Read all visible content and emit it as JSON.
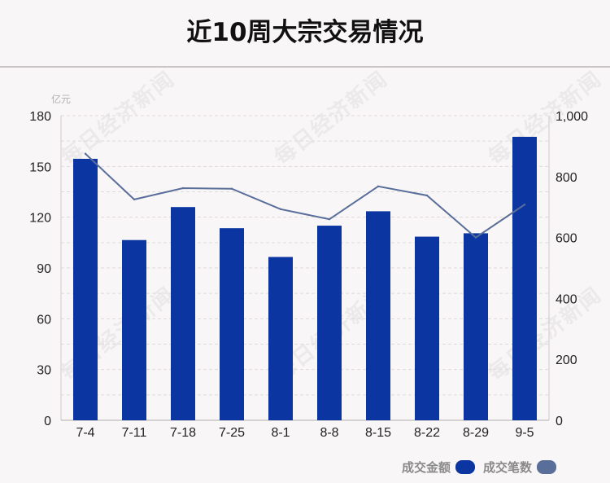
{
  "title": "近10周大宗交易情况",
  "watermark": "每日经济新闻",
  "colors": {
    "bar": "#0b35a0",
    "line": "#5a6e9a",
    "background": "#f9f6f7"
  },
  "chart_data": {
    "type": "bar",
    "title": "近10周大宗交易情况",
    "categories": [
      "7-4",
      "7-11",
      "7-18",
      "7-25",
      "8-1",
      "8-8",
      "8-15",
      "8-22",
      "8-29",
      "9-5"
    ],
    "series": [
      {
        "name": "成交金额",
        "type": "bar",
        "axis": "left",
        "values": [
          154.5,
          106.5,
          126,
          113.5,
          96.5,
          115,
          123.5,
          108.5,
          110.5,
          167.5
        ]
      },
      {
        "name": "成交笔数",
        "type": "line",
        "axis": "right",
        "values": [
          875,
          725,
          762,
          760,
          693,
          660,
          768,
          738,
          600,
          708
        ]
      }
    ],
    "y_left": {
      "unit": "亿元",
      "lim": [
        0,
        180
      ],
      "ticks": [
        "0",
        "30",
        "60",
        "90",
        "120",
        "150",
        "180"
      ]
    },
    "y_right": {
      "lim": [
        0,
        1000
      ],
      "ticks": [
        "0",
        "200",
        "400",
        "600",
        "800",
        "1,000"
      ]
    },
    "grid": true,
    "legend": "bottom-right"
  }
}
